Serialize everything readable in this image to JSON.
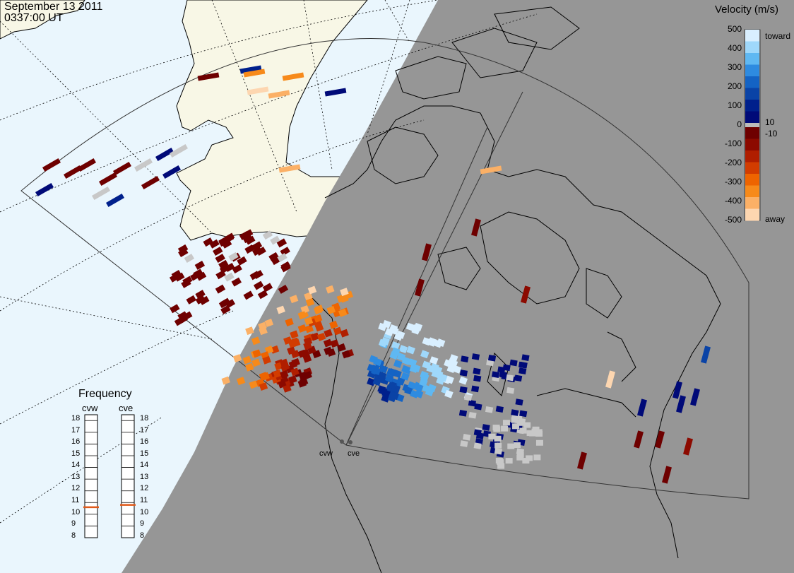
{
  "header": {
    "date": "September  13 2011",
    "time": "0337:00 UT"
  },
  "colors": {
    "ocean": "#eaf6fd",
    "land": "#f8f7e6",
    "night": "#969696",
    "coast": "#000000",
    "groundscatter": "#c8c8c8"
  },
  "colorbar": {
    "title": "Velocity (m/s)",
    "ticks": [
      "500",
      "400",
      "300",
      "200",
      "100",
      "0",
      "-100",
      "-200",
      "-300",
      "-400",
      "-500"
    ],
    "near_zero": [
      "10",
      "-10"
    ],
    "toward_label": "toward",
    "away_label": "away",
    "toward_colors": [
      "#d9efff",
      "#9fd8fb",
      "#5fb8f2",
      "#2e8be0",
      "#1463c4",
      "#0a43a6",
      "#00208c",
      "#000a78"
    ],
    "away_colors": [
      "#6e0000",
      "#8c0a00",
      "#b01e00",
      "#d23c00",
      "#ee6400",
      "#f78a1a",
      "#fbb066",
      "#fdd6b0"
    ]
  },
  "frequency": {
    "title": "Frequency",
    "radars": [
      {
        "name": "cvw",
        "value_mhz": 10.6
      },
      {
        "name": "cve",
        "value_mhz": 10.8
      }
    ],
    "ticks": [
      "18",
      "17",
      "16",
      "15",
      "14",
      "13",
      "12",
      "11",
      "10",
      "9",
      "8"
    ],
    "indicator_color": "#e05a1a"
  },
  "sites": [
    {
      "name": "cvw"
    },
    {
      "name": "cve"
    }
  ]
}
